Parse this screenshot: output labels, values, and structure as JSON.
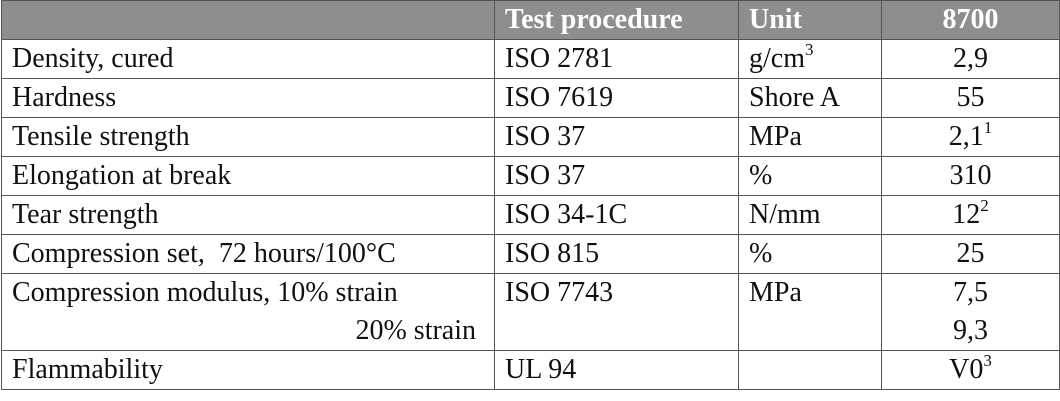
{
  "table": {
    "header": [
      "Test procedure",
      "Unit",
      "8700"
    ],
    "rows": [
      {
        "property": [
          "Density, cured"
        ],
        "test": "ISO 2781",
        "unit": "g/cm",
        "unit_sup": "3",
        "value": [
          "2,9"
        ]
      },
      {
        "property": [
          "Hardness"
        ],
        "test": "ISO 7619",
        "unit": "Shore A",
        "value": [
          "55"
        ]
      },
      {
        "property": [
          "Tensile strength"
        ],
        "test": "ISO 37",
        "unit": "MPa",
        "value": [
          "2,1"
        ],
        "value_sup": "1"
      },
      {
        "property": [
          "Elongation at break"
        ],
        "test": "ISO 37",
        "unit": "%",
        "value": [
          "310"
        ]
      },
      {
        "property": [
          "Tear strength"
        ],
        "test": "ISO 34-1C",
        "unit": "N/mm",
        "value": [
          "12"
        ],
        "value_sup": "2"
      },
      {
        "property": [
          "Compression set,  72 hours/100°C"
        ],
        "test": "ISO 815",
        "unit": "%",
        "value": [
          "25"
        ]
      },
      {
        "property": [
          "Compression modulus, 10% strain",
          "20% strain"
        ],
        "test": "ISO 7743",
        "unit": "MPa",
        "value": [
          "7,5",
          "9,3"
        ]
      },
      {
        "property": [
          "Flammability"
        ],
        "test": "UL 94",
        "value": [
          "V0"
        ],
        "value_sup": "3"
      }
    ]
  }
}
